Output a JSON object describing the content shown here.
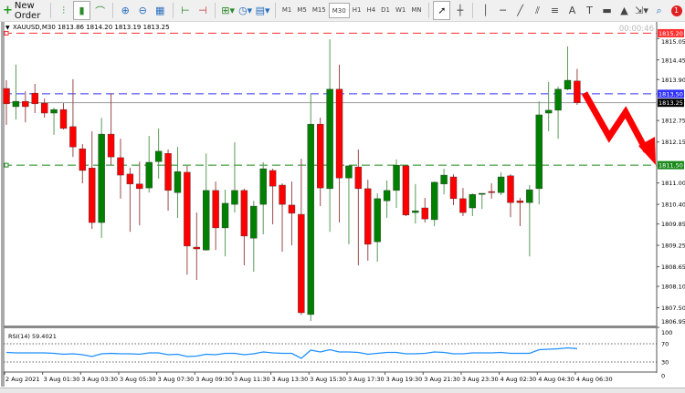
{
  "toolbar": {
    "new_order_label": "New Order",
    "icons": [
      "bar-chart-icon",
      "candlestick-icon",
      "line-chart-icon",
      "zoom-in-icon",
      "zoom-out-icon",
      "tile-windows-icon",
      "autoscroll-icon",
      "chart-shift-icon",
      "indicators-icon",
      "periods-icon",
      "templates-icon"
    ],
    "timeframes": [
      "M1",
      "M5",
      "M15",
      "M30",
      "H1",
      "H4",
      "D1",
      "W1",
      "MN"
    ],
    "active_timeframe": "M30",
    "drawing_tools": [
      "cursor-icon",
      "crosshair-icon",
      "vertical-line-icon",
      "horizontal-line-icon",
      "trendline-icon",
      "fibonacci-icon",
      "channel-icon",
      "text-icon",
      "text-label-icon",
      "rectangle-icon",
      "triangle-icon",
      "arrows-icon"
    ],
    "notification_count": "1"
  },
  "chart": {
    "header": "XAUUSD,M30  1813.86 1814.20 1813.19 1813.25",
    "countdown": "00:00:46",
    "price_axis_labels": [
      "1815.05",
      "1814.45",
      "1813.90",
      "1812.75",
      "1812.15",
      "1811.00",
      "1810.40",
      "1809.85",
      "1809.25",
      "1808.65",
      "1808.10",
      "1807.50",
      "1806.95"
    ],
    "levels": [
      {
        "price": 1815.2,
        "label": "1815.20",
        "color": "#ff3030",
        "style": "dashed"
      },
      {
        "price": 1813.5,
        "label": "1813.50",
        "color": "#3030ff",
        "style": "dashed"
      },
      {
        "price": 1813.25,
        "label": "1813.25",
        "color": "#000000",
        "style": "bid"
      },
      {
        "price": 1811.5,
        "label": "1811.50",
        "color": "#1a8a1a",
        "style": "dashed"
      }
    ],
    "colors": {
      "bull": "#008000",
      "bear": "#ff0000",
      "arrow": "#ff0000"
    },
    "candles": [
      [
        1813.65,
        1813.88,
        1812.63,
        1813.22
      ],
      [
        1813.14,
        1814.32,
        1812.78,
        1813.29
      ],
      [
        1813.29,
        1813.57,
        1812.7,
        1813.14
      ],
      [
        1813.52,
        1813.78,
        1812.96,
        1813.22
      ],
      [
        1813.24,
        1813.37,
        1812.83,
        1812.96
      ],
      [
        1812.96,
        1813.11,
        1812.35,
        1813.06
      ],
      [
        1813.06,
        1813.24,
        1812.5,
        1812.53
      ],
      [
        1812.58,
        1813.91,
        1811.73,
        1812.01
      ],
      [
        1811.96,
        1812.09,
        1810.99,
        1811.35
      ],
      [
        1811.42,
        1812.45,
        1809.71,
        1809.89
      ],
      [
        1809.89,
        1812.83,
        1809.46,
        1812.37
      ],
      [
        1812.37,
        1813.52,
        1811.5,
        1811.73
      ],
      [
        1811.71,
        1812.24,
        1810.56,
        1811.22
      ],
      [
        1811.25,
        1811.43,
        1809.63,
        1810.97
      ],
      [
        1810.97,
        1811.6,
        1809.81,
        1810.84
      ],
      [
        1810.86,
        1812.32,
        1810.73,
        1811.58
      ],
      [
        1811.6,
        1812.53,
        1811.12,
        1811.89
      ],
      [
        1811.83,
        1811.94,
        1810.22,
        1810.79
      ],
      [
        1810.73,
        1812.01,
        1810.02,
        1811.32
      ],
      [
        1811.3,
        1811.48,
        1808.43,
        1809.23
      ],
      [
        1809.2,
        1810.17,
        1808.28,
        1809.15
      ],
      [
        1809.12,
        1811.83,
        1809.1,
        1810.79
      ],
      [
        1810.79,
        1811.04,
        1809.12,
        1809.74
      ],
      [
        1809.74,
        1810.81,
        1808.94,
        1810.43
      ],
      [
        1810.4,
        1812.14,
        1810.17,
        1810.79
      ],
      [
        1810.79,
        1810.84,
        1808.69,
        1809.51
      ],
      [
        1809.45,
        1810.5,
        1808.51,
        1810.35
      ],
      [
        1810.4,
        1811.58,
        1809.56,
        1811.4
      ],
      [
        1811.35,
        1811.4,
        1809.84,
        1810.91
      ],
      [
        1810.94,
        1810.99,
        1809.07,
        1810.4
      ],
      [
        1810.38,
        1811.04,
        1809.25,
        1810.15
      ],
      [
        1810.12,
        1811.68,
        1807.3,
        1807.36
      ],
      [
        1807.31,
        1813.5,
        1807.13,
        1812.65
      ],
      [
        1812.65,
        1812.83,
        1810.35,
        1810.86
      ],
      [
        1810.84,
        1815.03,
        1809.63,
        1813.63
      ],
      [
        1813.63,
        1814.32,
        1809.89,
        1811.14
      ],
      [
        1811.14,
        1811.48,
        1809.28,
        1811.48
      ],
      [
        1811.45,
        1811.94,
        1808.69,
        1810.84
      ],
      [
        1810.84,
        1811.09,
        1808.82,
        1809.28
      ],
      [
        1809.35,
        1810.71,
        1808.79,
        1810.56
      ],
      [
        1810.5,
        1811.07,
        1810.02,
        1810.79
      ],
      [
        1810.79,
        1811.66,
        1810.3,
        1811.5
      ],
      [
        1811.48,
        1811.5,
        1810.07,
        1810.1
      ],
      [
        1810.17,
        1810.97,
        1809.86,
        1810.22
      ],
      [
        1810.3,
        1810.58,
        1809.89,
        1809.99
      ],
      [
        1809.97,
        1811.04,
        1809.79,
        1811.02
      ],
      [
        1810.97,
        1811.4,
        1810.68,
        1811.22
      ],
      [
        1811.17,
        1811.24,
        1810.38,
        1810.56
      ],
      [
        1810.56,
        1810.86,
        1810.07,
        1810.17
      ],
      [
        1810.3,
        1810.71,
        1810.07,
        1810.68
      ],
      [
        1810.68,
        1810.71,
        1810.27,
        1810.71
      ],
      [
        1810.76,
        1810.99,
        1810.56,
        1810.73
      ],
      [
        1810.73,
        1811.3,
        1810.66,
        1811.17
      ],
      [
        1811.2,
        1811.24,
        1810.04,
        1810.45
      ],
      [
        1810.5,
        1810.58,
        1809.79,
        1810.45
      ],
      [
        1810.45,
        1810.94,
        1808.94,
        1810.81
      ],
      [
        1810.84,
        1813.29,
        1810.4,
        1812.91
      ],
      [
        1812.96,
        1813.83,
        1812.45,
        1813.04
      ],
      [
        1813.04,
        1813.7,
        1812.24,
        1813.63
      ],
      [
        1813.63,
        1814.83,
        1813.6,
        1813.88
      ],
      [
        1813.86,
        1814.2,
        1813.19,
        1813.25
      ]
    ],
    "time_labels": [
      "2 Aug 2021",
      "3 Aug 01:30",
      "3 Aug 03:30",
      "3 Aug 05:30",
      "3 Aug 07:30",
      "3 Aug 09:30",
      "3 Aug 11:30",
      "3 Aug 13:30",
      "3 Aug 15:30",
      "3 Aug 17:30",
      "3 Aug 19:30",
      "3 Aug 21:30",
      "3 Aug 23:30",
      "4 Aug 02:30",
      "4 Aug 04:30",
      "4 Aug 06:30"
    ]
  },
  "rsi": {
    "label": "RSI(14) 59.4021",
    "axis_labels": [
      "100",
      "70",
      "30",
      "0"
    ],
    "levels": [
      70,
      30
    ],
    "color": "#1e90ff",
    "values": [
      51,
      50,
      50,
      50,
      50,
      49,
      47,
      48,
      46,
      42,
      48,
      49,
      48,
      48,
      47,
      50,
      50,
      46,
      47,
      42,
      43,
      47,
      46,
      49,
      49,
      46,
      48,
      52,
      50,
      49,
      49,
      38,
      56,
      52,
      57,
      52,
      52,
      51,
      47,
      49,
      51,
      51,
      48,
      48,
      49,
      52,
      51,
      48,
      48,
      50,
      50,
      50,
      51,
      49,
      49,
      49,
      57,
      58,
      59,
      61,
      59.4021
    ]
  }
}
